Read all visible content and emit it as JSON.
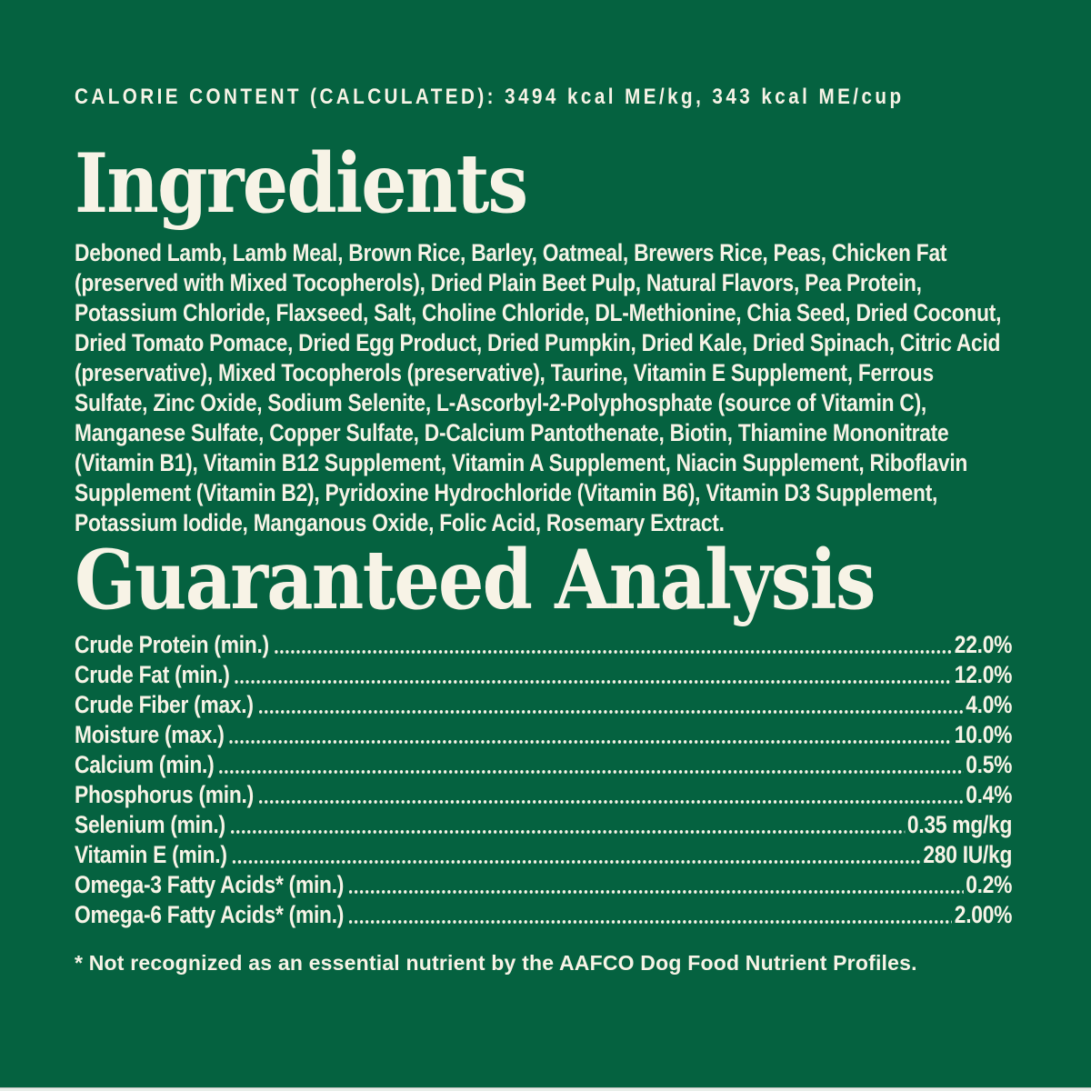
{
  "colors": {
    "background": "#056240",
    "text": "#F7F3E6",
    "bottom_edge": "#E9EFEA"
  },
  "calorie_line": "CALORIE CONTENT (CALCULATED): 3494 kcal ME/kg, 343 kcal ME/cup",
  "ingredients": {
    "heading": "Ingredients",
    "text": "Deboned Lamb, Lamb Meal, Brown Rice, Barley, Oatmeal, Brewers Rice, Peas, Chicken Fat (preserved with Mixed Tocopherols), Dried Plain Beet Pulp, Natural Flavors, Pea Protein, Potassium Chloride, Flaxseed, Salt, Choline Chloride, DL-Methionine, Chia Seed, Dried Coconut, Dried Tomato Pomace, Dried Egg Product, Dried Pumpkin, Dried Kale, Dried Spinach, Citric Acid (preservative), Mixed Tocopherols (preservative), Taurine, Vitamin E Supplement, Ferrous Sulfate, Zinc Oxide, Sodium Selenite, L-Ascorbyl-2-Polyphosphate (source of Vitamin C), Manganese Sulfate, Copper Sulfate, D-Calcium Pantothenate, Biotin, Thiamine Mononitrate (Vitamin B1), Vitamin B12 Supplement, Vitamin A Supplement, Niacin Supplement, Riboflavin Supplement (Vitamin B2), Pyridoxine Hydrochloride (Vitamin B6), Vitamin D3 Supplement, Potassium Iodide, Manganous Oxide, Folic Acid, Rosemary Extract."
  },
  "guaranteed_analysis": {
    "heading": "Guaranteed Analysis",
    "rows": [
      {
        "label": "Crude Protein (min.)",
        "value": "22.0%"
      },
      {
        "label": "Crude Fat (min.)",
        "value": "12.0%"
      },
      {
        "label": "Crude Fiber (max.)",
        "value": "4.0%"
      },
      {
        "label": "Moisture (max.)",
        "value": "10.0%"
      },
      {
        "label": "Calcium (min.)",
        "value": "0.5%"
      },
      {
        "label": "Phosphorus (min.)",
        "value": "0.4%"
      },
      {
        "label": "Selenium (min.)",
        "value": "0.35 mg/kg"
      },
      {
        "label": "Vitamin E (min.)",
        "value": "280 IU/kg"
      },
      {
        "label": "Omega-3 Fatty Acids* (min.)",
        "value": "0.2%"
      },
      {
        "label": "Omega-6 Fatty Acids* (min.)",
        "value": "2.00%"
      }
    ]
  },
  "footnote": "* Not recognized as an essential nutrient by the AAFCO Dog Food Nutrient Profiles."
}
